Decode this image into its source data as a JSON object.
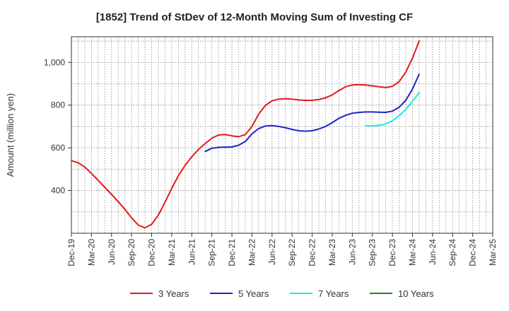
{
  "chart_data": {
    "type": "line",
    "title": "[1852]  Trend of StDev of 12-Month Moving Sum of Investing CF",
    "ylabel": "Amount (million yen)",
    "xlabel": "",
    "ylim": [
      200,
      1120
    ],
    "yticks": [
      400,
      600,
      800,
      1000
    ],
    "ytick_labels": [
      "400",
      "600",
      "800",
      "1,000"
    ],
    "x_start": "2019-12",
    "x_end": "2025-03",
    "xtick_labels": [
      "Dec-19",
      "Mar-20",
      "Jun-20",
      "Sep-20",
      "Dec-20",
      "Mar-21",
      "Jun-21",
      "Sep-21",
      "Dec-21",
      "Mar-22",
      "Jun-22",
      "Sep-22",
      "Dec-22",
      "Mar-23",
      "Jun-23",
      "Sep-23",
      "Dec-23",
      "Mar-24",
      "Jun-24",
      "Sep-24",
      "Dec-24",
      "Mar-25"
    ],
    "grid": true,
    "legend_position": "bottom",
    "series": [
      {
        "name": "3 Years",
        "color": "#e31a1c",
        "start": "2019-12",
        "values": [
          540,
          530,
          510,
          480,
          448,
          415,
          382,
          348,
          312,
          272,
          238,
          225,
          242,
          285,
          345,
          410,
          470,
          518,
          558,
          592,
          620,
          645,
          660,
          662,
          656,
          652,
          662,
          700,
          758,
          798,
          820,
          828,
          830,
          828,
          824,
          822,
          822,
          826,
          834,
          848,
          868,
          886,
          894,
          896,
          894,
          890,
          886,
          882,
          888,
          910,
          955,
          1020,
          1100
        ]
      },
      {
        "name": "5 Years",
        "color": "#1f24c8",
        "start": "2021-08",
        "values": [
          583,
          598,
          602,
          603,
          604,
          612,
          630,
          665,
          690,
          702,
          704,
          700,
          694,
          686,
          680,
          678,
          680,
          688,
          700,
          718,
          738,
          752,
          762,
          766,
          768,
          768,
          767,
          766,
          772,
          790,
          822,
          875,
          945
        ]
      },
      {
        "name": "7 Years",
        "color": "#22e5e5",
        "start": "2023-08",
        "values": [
          703,
          703,
          705,
          712,
          726,
          750,
          780,
          818,
          858
        ]
      },
      {
        "name": "10 Years",
        "color": "#1f8a1f",
        "start": "2024-03",
        "values": []
      }
    ]
  }
}
